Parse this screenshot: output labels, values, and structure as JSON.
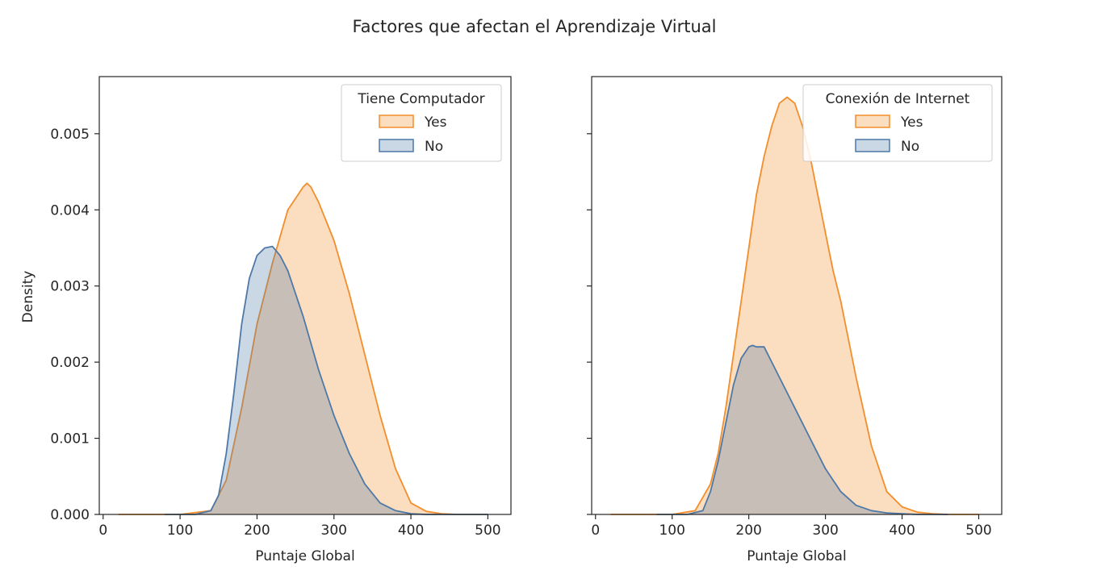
{
  "figure": {
    "title": "Factores que afectan el Aprendizaje Virtual",
    "ylabel": "Density"
  },
  "colors": {
    "yes": "#f28e2b",
    "no": "#4e79a7",
    "axis": "#262626"
  },
  "chart_data": [
    {
      "type": "area",
      "xlabel": "Puntaje Global",
      "ylabel": "Density",
      "xlim": [
        -5,
        530
      ],
      "ylim": [
        0,
        0.00575
      ],
      "xticks": [
        0,
        100,
        200,
        300,
        400,
        500
      ],
      "xtick_labels": [
        "0",
        "100",
        "200",
        "300",
        "400",
        "500"
      ],
      "yticks": [
        0,
        0.001,
        0.002,
        0.003,
        0.004,
        0.005
      ],
      "ytick_labels": [
        "0.000",
        "0.001",
        "0.002",
        "0.003",
        "0.004",
        "0.005"
      ],
      "legend": {
        "title": "Tiene Computador",
        "position": "upper right",
        "labels": [
          "Yes",
          "No"
        ]
      },
      "series": [
        {
          "name": "Yes",
          "color": "#f28e2b",
          "x": [
            20,
            100,
            140,
            160,
            180,
            200,
            220,
            240,
            250,
            260,
            265,
            270,
            280,
            300,
            320,
            340,
            360,
            380,
            400,
            420,
            440,
            460,
            480,
            500
          ],
          "y": [
            0,
            0,
            5e-05,
            0.00045,
            0.0014,
            0.0025,
            0.0033,
            0.004,
            0.00415,
            0.0043,
            0.00435,
            0.0043,
            0.0041,
            0.0036,
            0.0029,
            0.0021,
            0.0013,
            0.0006,
            0.00015,
            4e-05,
            1e-05,
            0,
            0,
            0
          ]
        },
        {
          "name": "No",
          "color": "#4e79a7",
          "x": [
            80,
            120,
            140,
            150,
            160,
            170,
            180,
            190,
            200,
            210,
            220,
            230,
            240,
            250,
            260,
            280,
            300,
            320,
            340,
            360,
            380,
            400,
            420,
            440,
            460,
            480,
            500
          ],
          "y": [
            0,
            0,
            5e-05,
            0.00025,
            0.0008,
            0.0016,
            0.0025,
            0.0031,
            0.0034,
            0.0035,
            0.00352,
            0.0034,
            0.0032,
            0.0029,
            0.0026,
            0.0019,
            0.0013,
            0.0008,
            0.0004,
            0.00015,
            5e-05,
            1e-05,
            0,
            0,
            0,
            0,
            0
          ]
        }
      ]
    },
    {
      "type": "area",
      "xlabel": "Puntaje Global",
      "xlim": [
        -5,
        530
      ],
      "ylim": [
        0,
        0.00575
      ],
      "xticks": [
        0,
        100,
        200,
        300,
        400,
        500
      ],
      "xtick_labels": [
        "0",
        "100",
        "200",
        "300",
        "400",
        "500"
      ],
      "yticks": [
        0,
        0.001,
        0.002,
        0.003,
        0.004,
        0.005
      ],
      "legend": {
        "title": "Conexión de Internet",
        "position": "upper right",
        "labels": [
          "Yes",
          "No"
        ]
      },
      "series": [
        {
          "name": "Yes",
          "color": "#f28e2b",
          "x": [
            20,
            100,
            130,
            150,
            160,
            170,
            180,
            190,
            200,
            210,
            220,
            230,
            240,
            250,
            260,
            270,
            280,
            290,
            300,
            310,
            320,
            340,
            360,
            380,
            400,
            420,
            440,
            460,
            480,
            500
          ],
          "y": [
            0,
            0,
            5e-05,
            0.0004,
            0.0008,
            0.0014,
            0.0021,
            0.0028,
            0.0035,
            0.0042,
            0.0047,
            0.0051,
            0.0054,
            0.00548,
            0.0054,
            0.0051,
            0.0047,
            0.0042,
            0.0037,
            0.0032,
            0.0028,
            0.0018,
            0.0009,
            0.0003,
            0.0001,
            3e-05,
            1e-05,
            0,
            0,
            0
          ]
        },
        {
          "name": "No",
          "color": "#4e79a7",
          "x": [
            80,
            120,
            140,
            150,
            160,
            170,
            180,
            190,
            200,
            205,
            210,
            220,
            230,
            240,
            250,
            260,
            280,
            300,
            320,
            340,
            360,
            380,
            400,
            420,
            440,
            460
          ],
          "y": [
            0,
            0,
            5e-05,
            0.0003,
            0.0007,
            0.0012,
            0.0017,
            0.00205,
            0.0022,
            0.00222,
            0.0022,
            0.0022,
            0.002,
            0.0018,
            0.0016,
            0.0014,
            0.001,
            0.0006,
            0.0003,
            0.00012,
            5e-05,
            2e-05,
            1e-05,
            0,
            0,
            0
          ]
        }
      ]
    }
  ]
}
